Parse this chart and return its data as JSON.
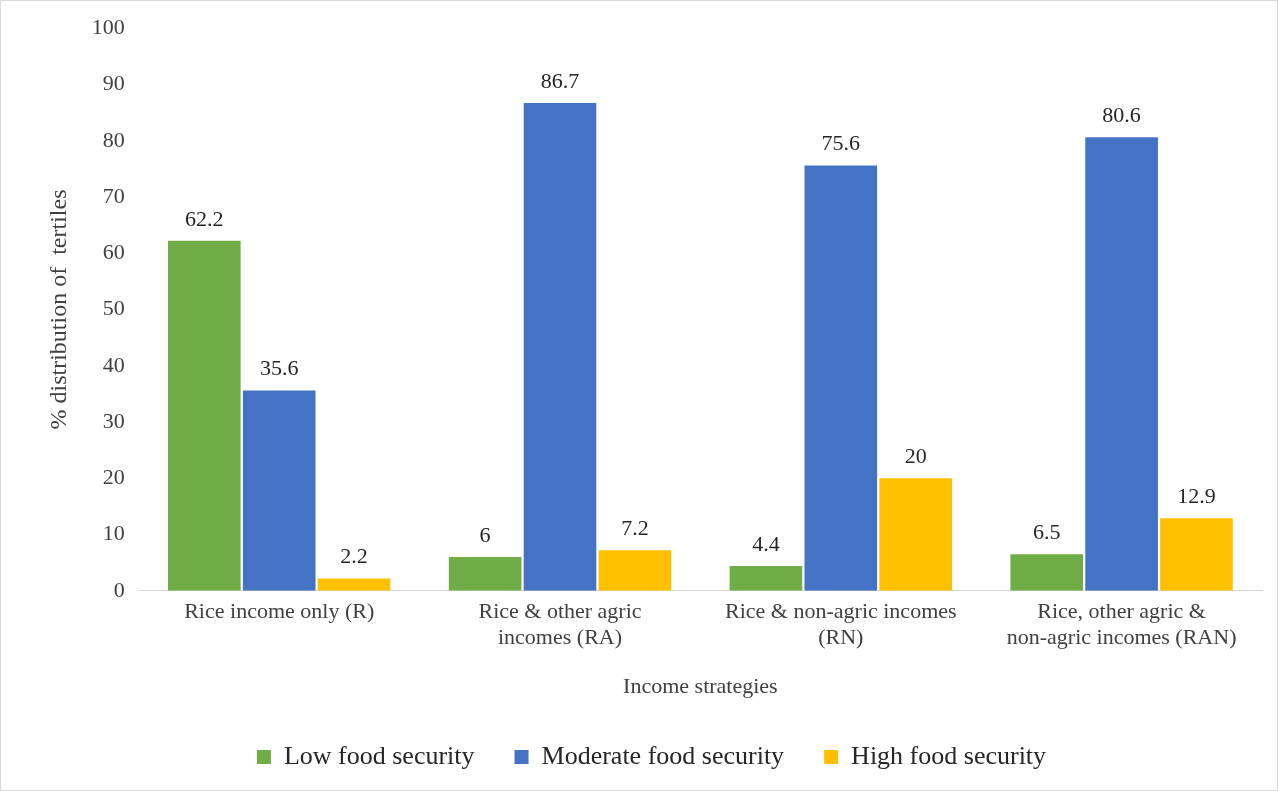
{
  "chart_data": {
    "type": "bar",
    "xlabel": "Income strategies",
    "ylabel": "% distribution of  tertiles",
    "categories": [
      "Rice income only (R)",
      "Rice & other agric incomes (RA)",
      "Rice & non-agric incomes (RN)",
      "Rice, other agric & non-agric incomes (RAN)"
    ],
    "series": [
      {
        "name": "Low food security",
        "color": "#70ad47",
        "values": [
          62.2,
          6,
          4.4,
          6.5
        ]
      },
      {
        "name": "Moderate food security",
        "color": "#4472c4",
        "values": [
          35.6,
          86.7,
          75.6,
          80.6
        ]
      },
      {
        "name": "High food security",
        "color": "#ffc000",
        "values": [
          2.2,
          7.2,
          20,
          12.9
        ]
      }
    ],
    "ylim": [
      0,
      100
    ],
    "yticks": [
      0,
      10,
      20,
      30,
      40,
      50,
      60,
      70,
      80,
      90,
      100
    ],
    "grid": false,
    "legend": "bottom",
    "data_labels": true
  }
}
